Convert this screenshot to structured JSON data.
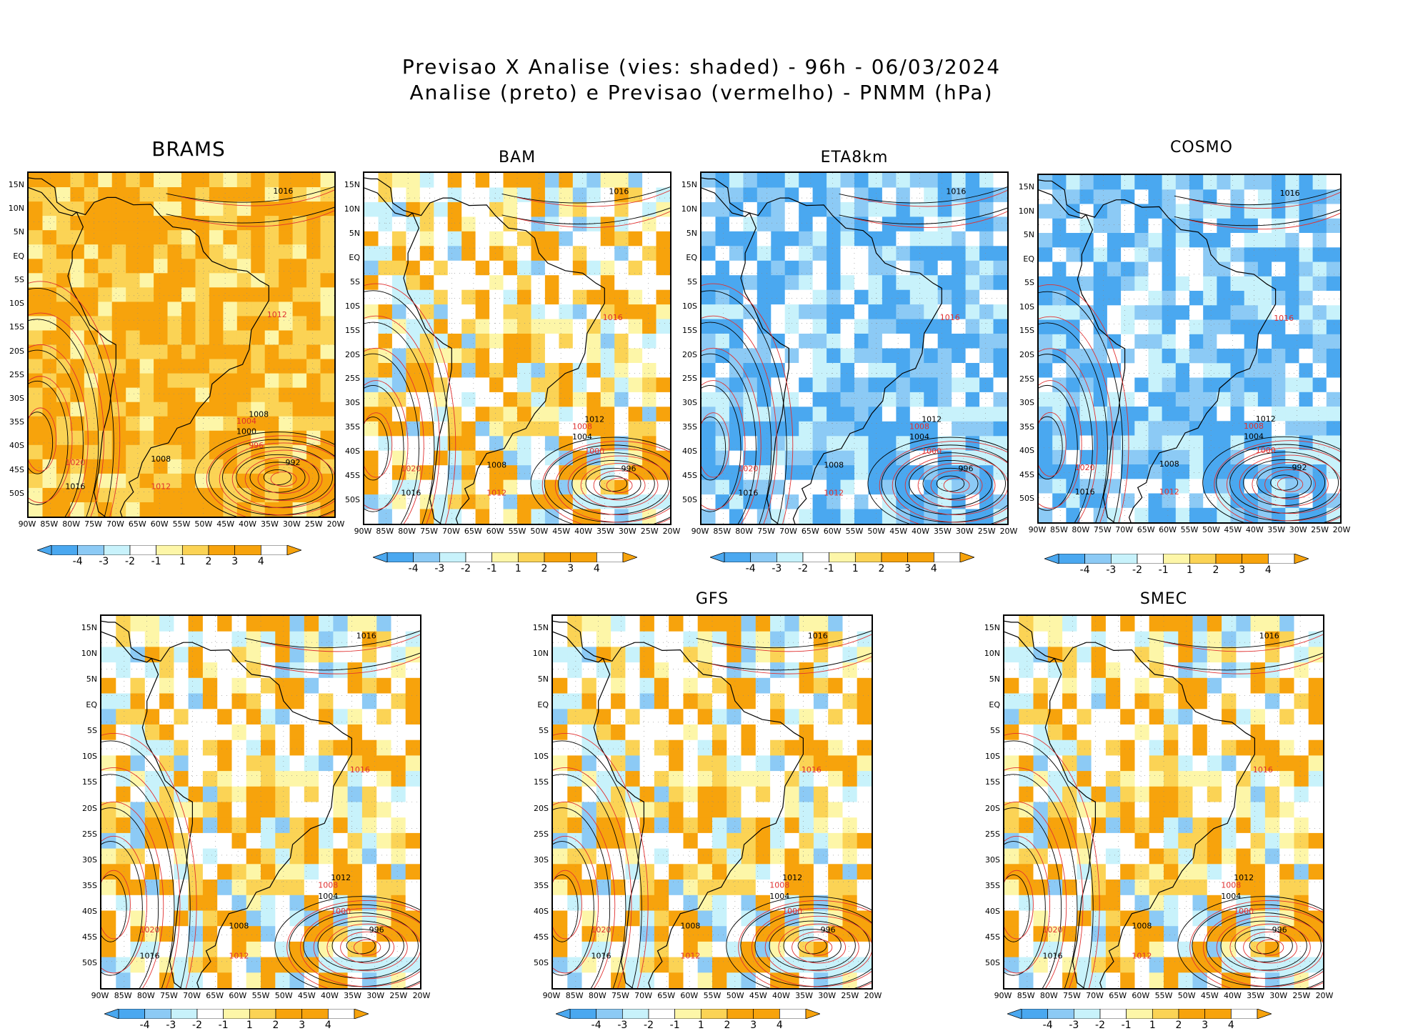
{
  "title": {
    "line1": "Previsao X Analise (vies: shaded) - 96h - 06/03/2024",
    "line2": "Analise (preto) e Previsao (vermelho) - PNMM (hPa)"
  },
  "lat_labels": [
    "15N",
    "10N",
    "5N",
    "EQ",
    "5S",
    "10S",
    "15S",
    "20S",
    "25S",
    "30S",
    "35S",
    "40S",
    "45S",
    "50S"
  ],
  "lon_labels": [
    "90W",
    "85W",
    "80W",
    "75W",
    "70W",
    "65W",
    "60W",
    "55W",
    "50W",
    "45W",
    "40W",
    "35W",
    "30W",
    "25W",
    "20W"
  ],
  "colorbar": {
    "labels": [
      "-4",
      "-3",
      "-2",
      "-1",
      "1",
      "2",
      "3",
      "4"
    ],
    "colors": [
      "#4aa8f0",
      "#8ccaf5",
      "#c8f2fb",
      "#ffffff",
      "#fdf6a8",
      "#fbd355",
      "#f7a30c"
    ]
  },
  "colors": {
    "analysis": "#000000",
    "forecast": "#e03030",
    "coast": "#000000"
  },
  "panels": [
    {
      "name": "BRAMS",
      "bias": "warm-strong",
      "contour_labels": [
        "1016",
        "1012",
        "1008",
        "1004",
        "1000",
        "996",
        "992",
        "1020",
        "1016",
        "1012",
        "1008"
      ]
    },
    {
      "name": "BAM",
      "bias": "mixed",
      "contour_labels": [
        "1016",
        "1016",
        "1012",
        "1008",
        "1004",
        "1000",
        "996",
        "1020",
        "1016",
        "1012",
        "1008"
      ]
    },
    {
      "name": "ETA8km",
      "bias": "cold",
      "contour_labels": [
        "1016",
        "1016",
        "1012",
        "1008",
        "1004",
        "1000",
        "996",
        "1020",
        "1016",
        "1012",
        "1008"
      ]
    },
    {
      "name": "COSMO",
      "bias": "cold",
      "contour_labels": [
        "1016",
        "1016",
        "1012",
        "1008",
        "1004",
        "1000",
        "992",
        "1020",
        "1016",
        "1012",
        "1008"
      ]
    },
    {
      "name": "",
      "bias": "mixed",
      "contour_labels": [
        "1016",
        "1016",
        "1012",
        "1008",
        "1004",
        "1000",
        "996",
        "1020",
        "1016",
        "1012",
        "1008"
      ]
    },
    {
      "name": "GFS",
      "bias": "mixed",
      "contour_labels": [
        "1016",
        "1016",
        "1012",
        "1008",
        "1004",
        "1000",
        "996",
        "1020",
        "1016",
        "1012",
        "1008"
      ]
    },
    {
      "name": "SMEC",
      "bias": "mixed",
      "contour_labels": [
        "1016",
        "1016",
        "1012",
        "1008",
        "1004",
        "1000",
        "996",
        "1020",
        "1016",
        "1012",
        "1008"
      ]
    }
  ]
}
